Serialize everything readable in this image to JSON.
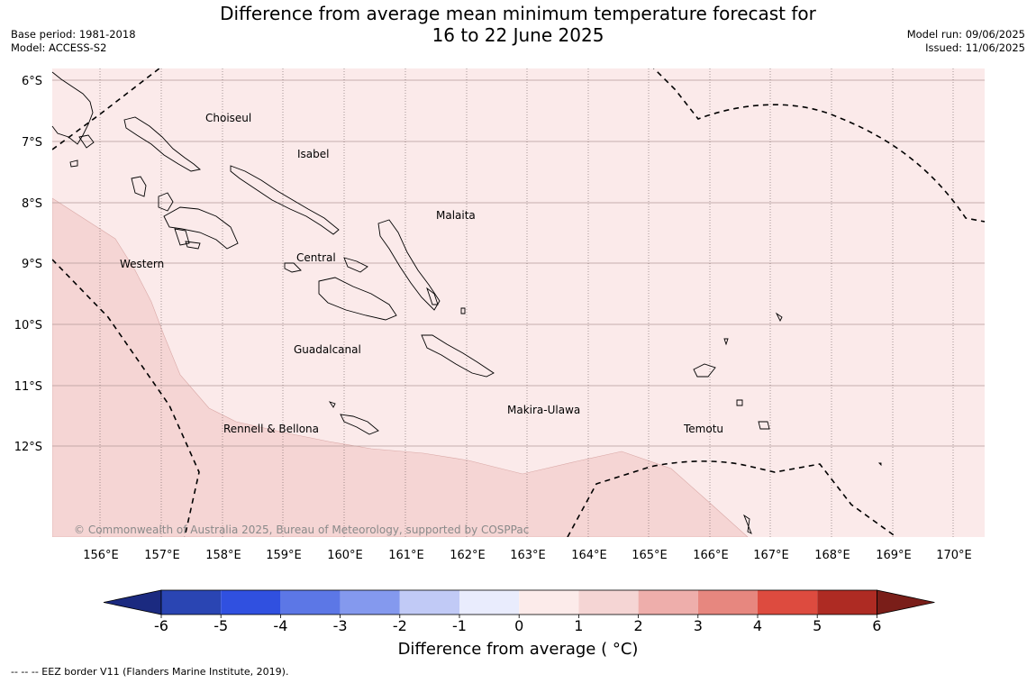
{
  "title": {
    "line1": "Difference from average mean minimum temperature forecast for",
    "line2": "16 to 22 June 2025"
  },
  "meta_left": {
    "base_period": "Base period: 1981-2018",
    "model": "Model: ACCESS-S2"
  },
  "meta_right": {
    "model_run": "Model run: 09/06/2025",
    "issued": "Issued: 11/06/2025"
  },
  "map": {
    "lat_labels": [
      "6°S",
      "7°S",
      "8°S",
      "9°S",
      "10°S",
      "11°S",
      "12°S"
    ],
    "lon_labels": [
      "156°E",
      "157°E",
      "158°E",
      "159°E",
      "160°E",
      "161°E",
      "162°E",
      "163°E",
      "164°E",
      "165°E",
      "166°E",
      "167°E",
      "168°E",
      "169°E",
      "170°E"
    ],
    "places": [
      "Choiseul",
      "Isabel",
      "Malaita",
      "Western",
      "Central",
      "Guadalcanal",
      "Makira-Ulawa",
      "Rennell & Bellona",
      "Temotu"
    ],
    "copyright": "© Commonwealth of Australia 2025, Bureau of Meteorology, supported by COSPPac",
    "fill_colors": {
      "anomaly_0_to_1": "#fbeaea",
      "anomaly_1_to_2": "#f5d5d4"
    }
  },
  "colorbar": {
    "ticks": [
      "-6",
      "-5",
      "-4",
      "-3",
      "-2",
      "-1",
      "0",
      "1",
      "2",
      "3",
      "4",
      "5",
      "6"
    ],
    "colors": [
      "#1b2a80",
      "#2a45b3",
      "#3050e0",
      "#5c77e6",
      "#8499ee",
      "#c1caf6",
      "#e9ecfd",
      "#fcebea",
      "#f5d5d4",
      "#eeaeab",
      "#e7877f",
      "#dd4b3f",
      "#ae2b23",
      "#7a1e19"
    ],
    "label": "Difference from average ( °C)"
  },
  "footnote": "--  --  -- EEZ border V11 (Flanders Marine Institute, 2019)."
}
